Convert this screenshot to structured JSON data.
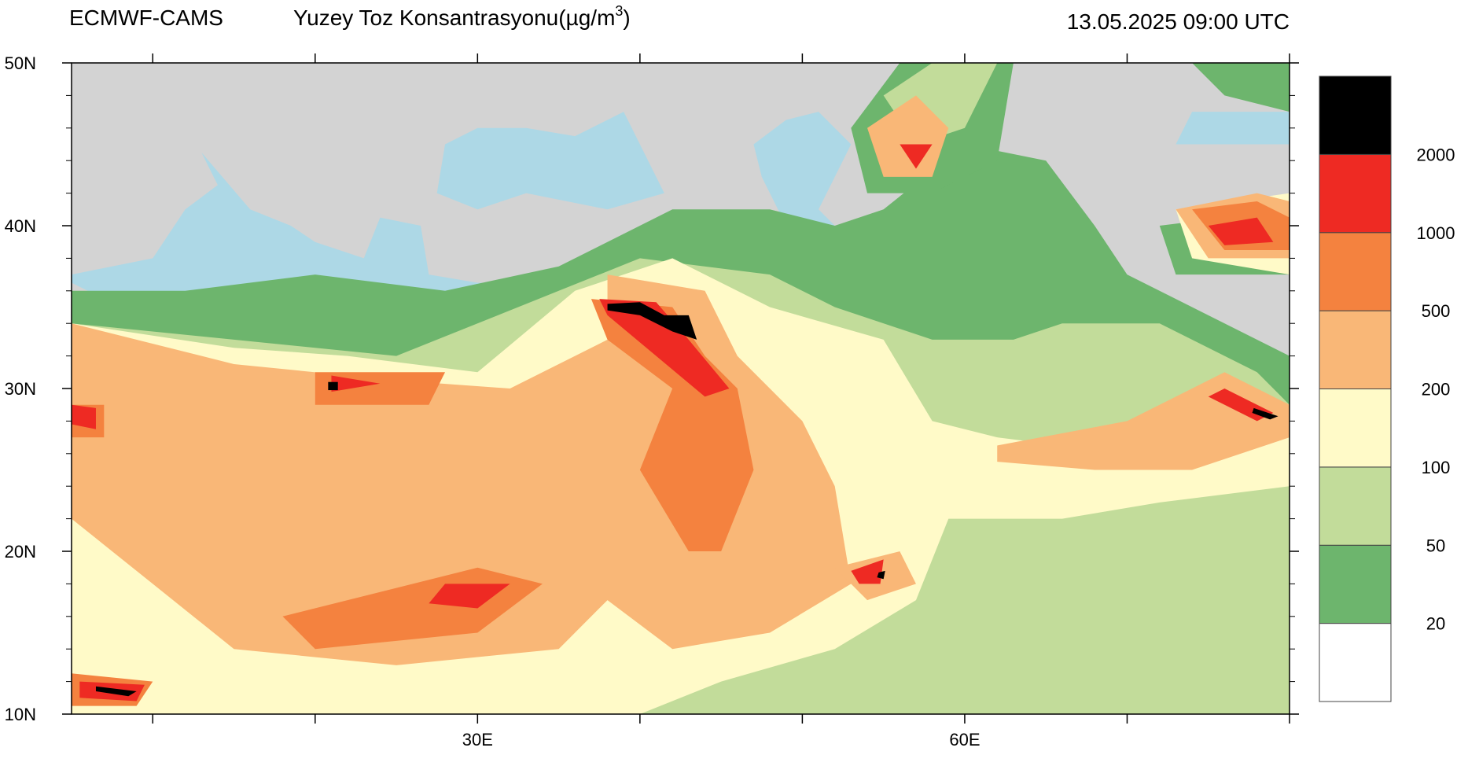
{
  "header": {
    "source": "ECMWF-CAMS",
    "title": "Yuzey Toz Konsantrasyonu(µg/m",
    "title_sup": "3",
    "title_end": ")",
    "time": "13.05.2025 09:00 UTC"
  },
  "map": {
    "lon_range": [
      5,
      80
    ],
    "lat_range": [
      10,
      50
    ],
    "x_ticks": [
      {
        "value": 30,
        "label": "30E"
      },
      {
        "value": 60,
        "label": "60E"
      }
    ],
    "x_minor_ticks": [
      10,
      20,
      40,
      50,
      70,
      80
    ],
    "y_ticks": [
      {
        "value": 10,
        "label": "10N"
      },
      {
        "value": 20,
        "label": "20N"
      },
      {
        "value": 30,
        "label": "30N"
      },
      {
        "value": 40,
        "label": "40N"
      },
      {
        "value": 50,
        "label": "50N"
      }
    ],
    "y_minor_ticks": [
      12,
      14,
      16,
      18,
      22,
      24,
      26,
      28,
      32,
      34,
      36,
      38,
      42,
      44,
      46,
      48
    ],
    "land_color": "#d3d3d3",
    "sea_color": "#add8e6"
  },
  "colorbar": {
    "levels": [
      20,
      50,
      100,
      200,
      500,
      1000,
      2000
    ],
    "colors": [
      "#ffffff",
      "#6db56d",
      "#c2dc9a",
      "#fffac8",
      "#f9b777",
      "#f4823f",
      "#ee2a23",
      "#000000"
    ]
  }
}
